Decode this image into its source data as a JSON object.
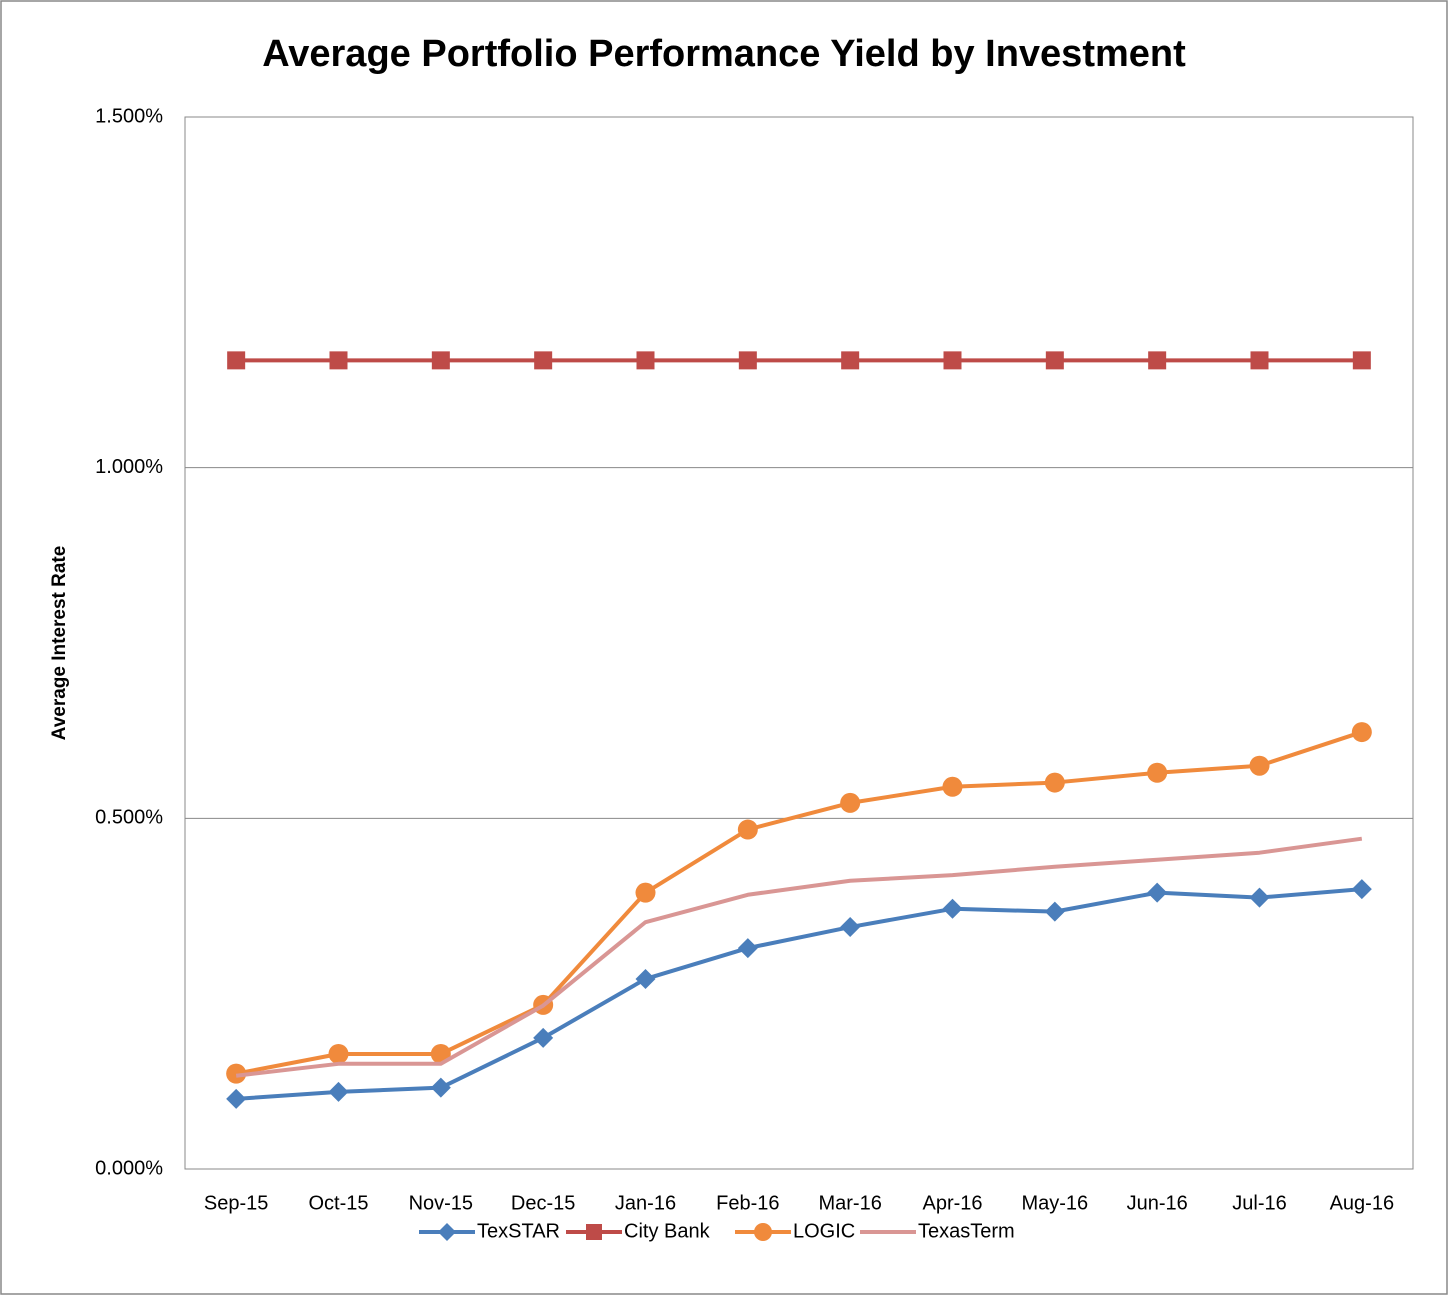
{
  "chart_data": {
    "type": "line",
    "title": "Average Portfolio Performance Yield by Investment",
    "y_label": "Average Interest Rate",
    "categories": [
      "Sep-15",
      "Oct-15",
      "Nov-15",
      "Dec-15",
      "Jan-16",
      "Feb-16",
      "Mar-16",
      "Apr-16",
      "May-16",
      "Jun-16",
      "Jul-16",
      "Aug-16"
    ],
    "series": [
      {
        "name": "TexSTAR",
        "color": "#4a7ebb",
        "marker": "diamond",
        "values": [
          0.1,
          0.11,
          0.116,
          0.187,
          0.271,
          0.315,
          0.345,
          0.371,
          0.367,
          0.394,
          0.387,
          0.399
        ]
      },
      {
        "name": "City Bank",
        "color": "#be4b48",
        "marker": "square",
        "values": [
          1.153,
          1.153,
          1.153,
          1.153,
          1.153,
          1.153,
          1.153,
          1.153,
          1.153,
          1.153,
          1.153,
          1.153
        ]
      },
      {
        "name": "LOGIC",
        "color": "#f08a3c",
        "marker": "circle",
        "values": [
          0.136,
          0.164,
          0.164,
          0.234,
          0.394,
          0.484,
          0.522,
          0.545,
          0.551,
          0.565,
          0.575,
          0.623
        ]
      },
      {
        "name": "TexasTerm",
        "color": "#d99694",
        "marker": "none",
        "values": [
          0.133,
          0.15,
          0.15,
          0.233,
          0.352,
          0.391,
          0.411,
          0.419,
          0.431,
          0.441,
          0.451,
          0.471
        ]
      }
    ],
    "ylim": [
      0,
      1.5
    ],
    "yticks": [
      {
        "value": 0,
        "label": "0.000%"
      },
      {
        "value": 0.5,
        "label": "0.500%"
      },
      {
        "value": 1.0,
        "label": "1.000%"
      },
      {
        "value": 1.5,
        "label": "1.500%"
      }
    ],
    "grid": true,
    "legend": "bottom"
  }
}
